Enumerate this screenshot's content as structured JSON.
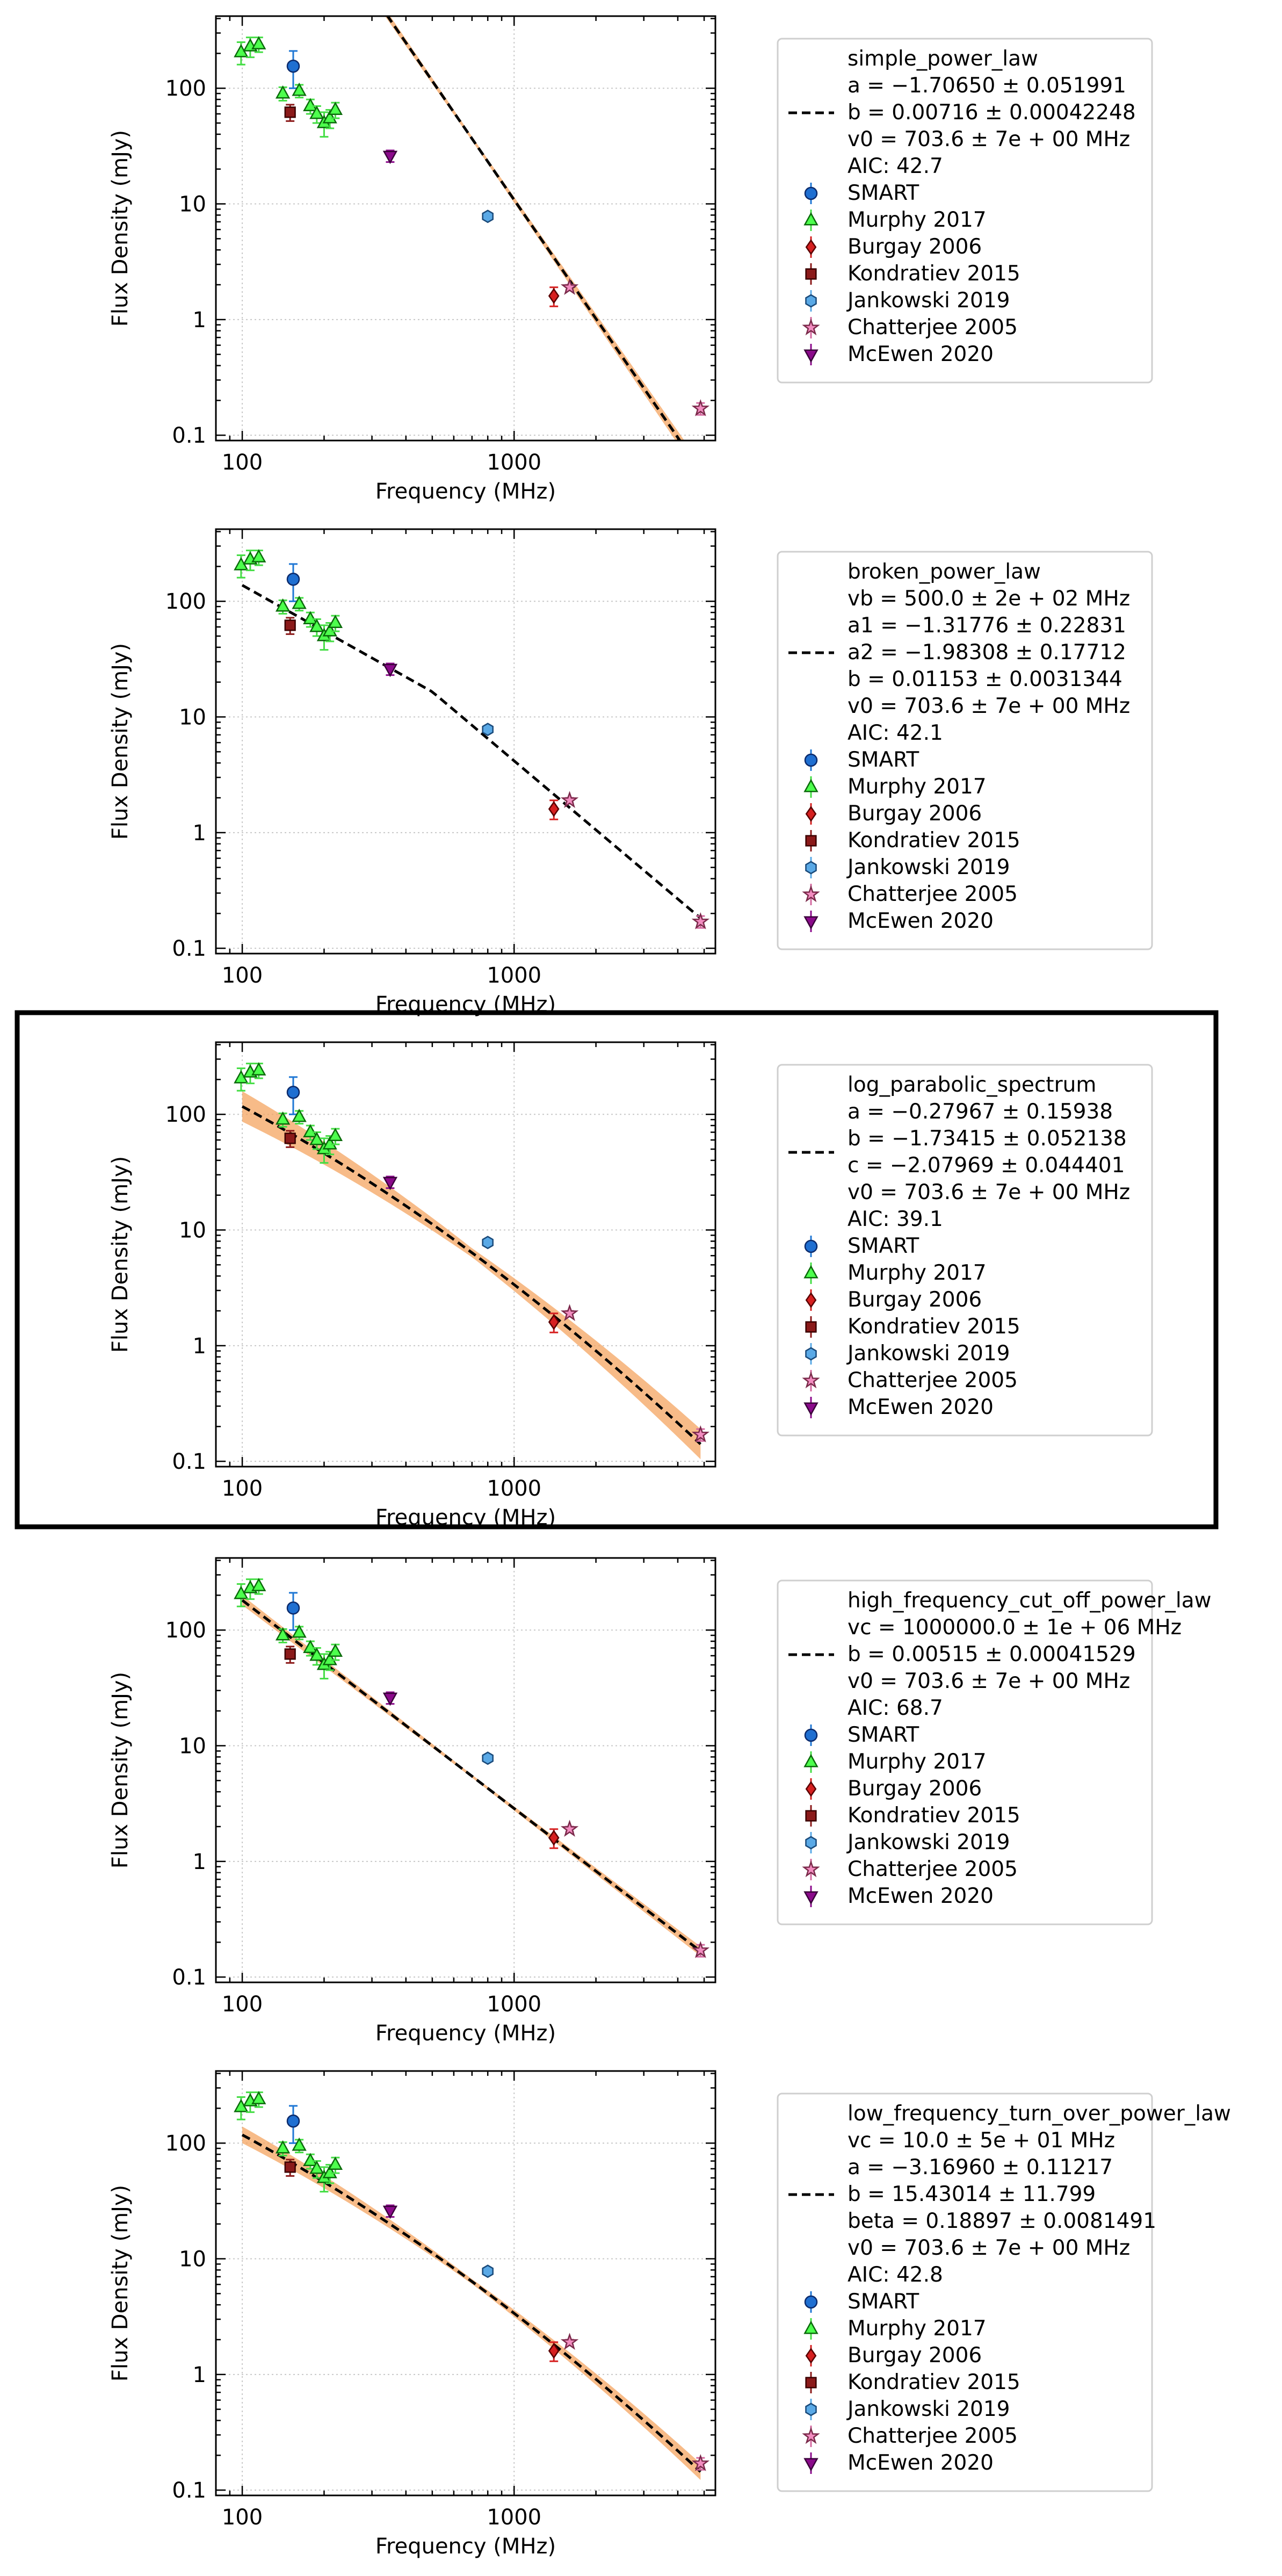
{
  "figure": {
    "legend_entries": [
      {
        "name": "SMART",
        "marker": "circle",
        "fill": "#1f6fd1",
        "edge": "#0b2a6b",
        "err": "#1f77d4"
      },
      {
        "name": "Murphy 2017",
        "marker": "triangle-up",
        "fill": "#4dff4d",
        "edge": "#0a6a0a",
        "err": "#44dd44"
      },
      {
        "name": "Burgay 2006",
        "marker": "diamond",
        "fill": "#d62020",
        "edge": "#5a0000",
        "err": "#d62020"
      },
      {
        "name": "Kondratiev 2015",
        "marker": "square",
        "fill": "#8b1a1a",
        "edge": "#3a0000",
        "err": "#8b1a1a"
      },
      {
        "name": "Jankowski 2019",
        "marker": "hexagon",
        "fill": "#5aa9e6",
        "edge": "#1a4a7a",
        "err": "#5aa9e6"
      },
      {
        "name": "Chatterjee 2005",
        "marker": "star",
        "fill": "#f28cc0",
        "edge": "#7a2a4a",
        "err": "#d46aa0"
      },
      {
        "name": "McEwen 2020",
        "marker": "triangle-down",
        "fill": "#8b0a8b",
        "edge": "#3a003a",
        "err": "#8b0a8b"
      }
    ],
    "fit_style": {
      "line_color": "#000000",
      "band_color": "#f4a460"
    }
  },
  "chart_data": [
    {
      "type": "scatter",
      "xlabel": "Frequency (MHz)",
      "ylabel": "Flux Density (mJy)",
      "xscale": "log",
      "yscale": "log",
      "xlim": [
        80,
        5500
      ],
      "ylim": [
        0.09,
        420
      ],
      "xticks": [
        {
          "v": 100,
          "label": "100"
        },
        {
          "v": 1000,
          "label": "1000"
        }
      ],
      "yticks": [
        {
          "v": 0.1,
          "label": "0.1"
        },
        {
          "v": 1,
          "label": "1"
        },
        {
          "v": 10,
          "label": "10"
        },
        {
          "v": 100,
          "label": "100"
        }
      ],
      "grid": true,
      "highlighted": false,
      "fit_label": [
        "simple_power_law",
        "a = −1.70650 ± 0.051991",
        "b = 0.00716 ± 0.00042248",
        "v0 = 703.6 ± 7e + 00 MHz",
        "AIC: 42.7"
      ],
      "fit_curve": {
        "model": "simple",
        "params": {
          "a": -1.7065,
          "b": 0.00716,
          "v0": 703.6
        },
        "band": true,
        "band_width": 0.05
      },
      "series": [
        {
          "name": "SMART",
          "points": [
            [
              154,
              155,
              55
            ]
          ]
        },
        {
          "name": "Murphy 2017",
          "points": [
            [
              99,
              205,
              45
            ],
            [
              107,
              230,
              45
            ],
            [
              115,
              240,
              35
            ],
            [
              141,
              90,
              12
            ],
            [
              162,
              95,
              12
            ],
            [
              178,
              70,
              10
            ],
            [
              188,
              60,
              10
            ],
            [
              200,
              50,
              12
            ],
            [
              210,
              55,
              10
            ],
            [
              220,
              65,
              10
            ]
          ]
        },
        {
          "name": "Burgay 2006",
          "points": [
            [
              1400,
              1.6,
              0.3
            ]
          ]
        },
        {
          "name": "Kondratiev 2015",
          "points": [
            [
              150,
              62,
              10
            ]
          ]
        },
        {
          "name": "Jankowski 2019",
          "points": [
            [
              800,
              7.8,
              0.5
            ]
          ]
        },
        {
          "name": "Chatterjee 2005",
          "points": [
            [
              1600,
              1.9,
              0.1
            ],
            [
              4850,
              0.17,
              0.02
            ]
          ]
        },
        {
          "name": "McEwen 2020",
          "points": [
            [
              350,
              26,
              3
            ]
          ]
        }
      ]
    },
    {
      "type": "scatter",
      "xlabel": "Frequency (MHz)",
      "ylabel": "Flux Density (mJy)",
      "xscale": "log",
      "yscale": "log",
      "xlim": [
        80,
        5500
      ],
      "ylim": [
        0.09,
        420
      ],
      "xticks": [
        {
          "v": 100,
          "label": "100"
        },
        {
          "v": 1000,
          "label": "1000"
        }
      ],
      "yticks": [
        {
          "v": 0.1,
          "label": "0.1"
        },
        {
          "v": 1,
          "label": "1"
        },
        {
          "v": 10,
          "label": "10"
        },
        {
          "v": 100,
          "label": "100"
        }
      ],
      "grid": true,
      "highlighted": false,
      "fit_label": [
        "broken_power_law",
        "vb = 500.0 ± 2e + 02 MHz",
        "a1 = −1.31776 ± 0.22831",
        "a2 = −1.98308 ± 0.17712",
        "b = 0.01153 ± 0.0031344",
        "v0 = 703.6 ± 7e + 00 MHz",
        "AIC: 42.1"
      ],
      "fit_curve": {
        "model": "broken",
        "params": {
          "vb": 500.0,
          "a1": -1.31776,
          "a2": -1.98308,
          "b": 0.01153,
          "v0": 703.6
        },
        "band": false,
        "band_width": 0
      },
      "series": [
        {
          "name": "SMART",
          "points": [
            [
              154,
              155,
              55
            ]
          ]
        },
        {
          "name": "Murphy 2017",
          "points": [
            [
              99,
              205,
              45
            ],
            [
              107,
              230,
              45
            ],
            [
              115,
              240,
              35
            ],
            [
              141,
              90,
              12
            ],
            [
              162,
              95,
              12
            ],
            [
              178,
              70,
              10
            ],
            [
              188,
              60,
              10
            ],
            [
              200,
              50,
              12
            ],
            [
              210,
              55,
              10
            ],
            [
              220,
              65,
              10
            ]
          ]
        },
        {
          "name": "Burgay 2006",
          "points": [
            [
              1400,
              1.6,
              0.3
            ]
          ]
        },
        {
          "name": "Kondratiev 2015",
          "points": [
            [
              150,
              62,
              10
            ]
          ]
        },
        {
          "name": "Jankowski 2019",
          "points": [
            [
              800,
              7.8,
              0.5
            ]
          ]
        },
        {
          "name": "Chatterjee 2005",
          "points": [
            [
              1600,
              1.9,
              0.1
            ],
            [
              4850,
              0.17,
              0.02
            ]
          ]
        },
        {
          "name": "McEwen 2020",
          "points": [
            [
              350,
              26,
              3
            ]
          ]
        }
      ]
    },
    {
      "type": "scatter",
      "xlabel": "Frequency (MHz)",
      "ylabel": "Flux Density (mJy)",
      "xscale": "log",
      "yscale": "log",
      "xlim": [
        80,
        5500
      ],
      "ylim": [
        0.09,
        420
      ],
      "xticks": [
        {
          "v": 100,
          "label": "100"
        },
        {
          "v": 1000,
          "label": "1000"
        }
      ],
      "yticks": [
        {
          "v": 0.1,
          "label": "0.1"
        },
        {
          "v": 1,
          "label": "1"
        },
        {
          "v": 10,
          "label": "10"
        },
        {
          "v": 100,
          "label": "100"
        }
      ],
      "grid": true,
      "highlighted": true,
      "fit_label": [
        "log_parabolic_spectrum",
        "a = −0.27967 ± 0.15938",
        "b = −1.73415 ± 0.052138",
        "c = −2.07969 ± 0.044401",
        "v0 = 703.6 ± 7e + 00 MHz",
        "AIC: 39.1"
      ],
      "fit_curve": {
        "model": "logparabolic",
        "params": {
          "a": -0.27967,
          "b": -1.73415,
          "c": -2.07969,
          "v0": 703.6
        },
        "band": true,
        "band_width": 0.11
      },
      "series": [
        {
          "name": "SMART",
          "points": [
            [
              154,
              155,
              55
            ]
          ]
        },
        {
          "name": "Murphy 2017",
          "points": [
            [
              99,
              205,
              45
            ],
            [
              107,
              230,
              45
            ],
            [
              115,
              240,
              35
            ],
            [
              141,
              90,
              12
            ],
            [
              162,
              95,
              12
            ],
            [
              178,
              70,
              10
            ],
            [
              188,
              60,
              10
            ],
            [
              200,
              50,
              12
            ],
            [
              210,
              55,
              10
            ],
            [
              220,
              65,
              10
            ]
          ]
        },
        {
          "name": "Burgay 2006",
          "points": [
            [
              1400,
              1.6,
              0.3
            ]
          ]
        },
        {
          "name": "Kondratiev 2015",
          "points": [
            [
              150,
              62,
              10
            ]
          ]
        },
        {
          "name": "Jankowski 2019",
          "points": [
            [
              800,
              7.8,
              0.5
            ]
          ]
        },
        {
          "name": "Chatterjee 2005",
          "points": [
            [
              1600,
              1.9,
              0.1
            ],
            [
              4850,
              0.17,
              0.02
            ]
          ]
        },
        {
          "name": "McEwen 2020",
          "points": [
            [
              350,
              26,
              3
            ]
          ]
        }
      ]
    },
    {
      "type": "scatter",
      "xlabel": "Frequency (MHz)",
      "ylabel": "Flux Density (mJy)",
      "xscale": "log",
      "yscale": "log",
      "xlim": [
        80,
        5500
      ],
      "ylim": [
        0.09,
        420
      ],
      "xticks": [
        {
          "v": 100,
          "label": "100"
        },
        {
          "v": 1000,
          "label": "1000"
        }
      ],
      "yticks": [
        {
          "v": 0.1,
          "label": "0.1"
        },
        {
          "v": 1,
          "label": "1"
        },
        {
          "v": 10,
          "label": "10"
        },
        {
          "v": 100,
          "label": "100"
        }
      ],
      "grid": true,
      "highlighted": false,
      "fit_label": [
        "high_frequency_cut_off_power_law",
        "vc = 1000000.0 ± 1e + 06 MHz",
        "b = 0.00515 ± 0.00041529",
        "v0 = 703.6 ± 7e + 00 MHz",
        "AIC: 68.7"
      ],
      "fit_curve": {
        "model": "hfco",
        "params": {
          "vc": 1000000.0,
          "b": 0.00515,
          "v0": 703.6,
          "a": -1.8
        },
        "band": true,
        "band_width": 0.035
      },
      "series": [
        {
          "name": "SMART",
          "points": [
            [
              154,
              155,
              55
            ]
          ]
        },
        {
          "name": "Murphy 2017",
          "points": [
            [
              99,
              205,
              45
            ],
            [
              107,
              230,
              45
            ],
            [
              115,
              240,
              35
            ],
            [
              141,
              90,
              12
            ],
            [
              162,
              95,
              12
            ],
            [
              178,
              70,
              10
            ],
            [
              188,
              60,
              10
            ],
            [
              200,
              50,
              12
            ],
            [
              210,
              55,
              10
            ],
            [
              220,
              65,
              10
            ]
          ]
        },
        {
          "name": "Burgay 2006",
          "points": [
            [
              1400,
              1.6,
              0.3
            ]
          ]
        },
        {
          "name": "Kondratiev 2015",
          "points": [
            [
              150,
              62,
              10
            ]
          ]
        },
        {
          "name": "Jankowski 2019",
          "points": [
            [
              800,
              7.8,
              0.5
            ]
          ]
        },
        {
          "name": "Chatterjee 2005",
          "points": [
            [
              1600,
              1.9,
              0.1
            ],
            [
              4850,
              0.17,
              0.02
            ]
          ]
        },
        {
          "name": "McEwen 2020",
          "points": [
            [
              350,
              26,
              3
            ]
          ]
        }
      ]
    },
    {
      "type": "scatter",
      "xlabel": "Frequency (MHz)",
      "ylabel": "Flux Density (mJy)",
      "xscale": "log",
      "yscale": "log",
      "xlim": [
        80,
        5500
      ],
      "ylim": [
        0.09,
        420
      ],
      "xticks": [
        {
          "v": 100,
          "label": "100"
        },
        {
          "v": 1000,
          "label": "1000"
        }
      ],
      "yticks": [
        {
          "v": 0.1,
          "label": "0.1"
        },
        {
          "v": 1,
          "label": "1"
        },
        {
          "v": 10,
          "label": "10"
        },
        {
          "v": 100,
          "label": "100"
        }
      ],
      "grid": true,
      "highlighted": false,
      "fit_label": [
        "low_frequency_turn_over_power_law",
        "vc = 10.0 ± 5e + 01 MHz",
        "a = −3.16960 ± 0.11217",
        "b = 15.43014 ± 11.799",
        "beta = 0.18897 ± 0.0081491",
        "v0 = 703.6 ± 7e + 00 MHz",
        "AIC: 42.8"
      ],
      "fit_curve": {
        "model": "logparabolic",
        "params": {
          "a": -0.27,
          "b": -1.73,
          "c": -2.08,
          "v0": 703.6
        },
        "band": true,
        "band_width": 0.06
      },
      "series": [
        {
          "name": "SMART",
          "points": [
            [
              154,
              155,
              55
            ]
          ]
        },
        {
          "name": "Murphy 2017",
          "points": [
            [
              99,
              205,
              45
            ],
            [
              107,
              230,
              45
            ],
            [
              115,
              240,
              35
            ],
            [
              141,
              90,
              12
            ],
            [
              162,
              95,
              12
            ],
            [
              178,
              70,
              10
            ],
            [
              188,
              60,
              10
            ],
            [
              200,
              50,
              12
            ],
            [
              210,
              55,
              10
            ],
            [
              220,
              65,
              10
            ]
          ]
        },
        {
          "name": "Burgay 2006",
          "points": [
            [
              1400,
              1.6,
              0.3
            ]
          ]
        },
        {
          "name": "Kondratiev 2015",
          "points": [
            [
              150,
              62,
              10
            ]
          ]
        },
        {
          "name": "Jankowski 2019",
          "points": [
            [
              800,
              7.8,
              0.5
            ]
          ]
        },
        {
          "name": "Chatterjee 2005",
          "points": [
            [
              1600,
              1.9,
              0.1
            ],
            [
              4850,
              0.17,
              0.02
            ]
          ]
        },
        {
          "name": "McEwen 2020",
          "points": [
            [
              350,
              26,
              3
            ]
          ]
        }
      ]
    }
  ]
}
